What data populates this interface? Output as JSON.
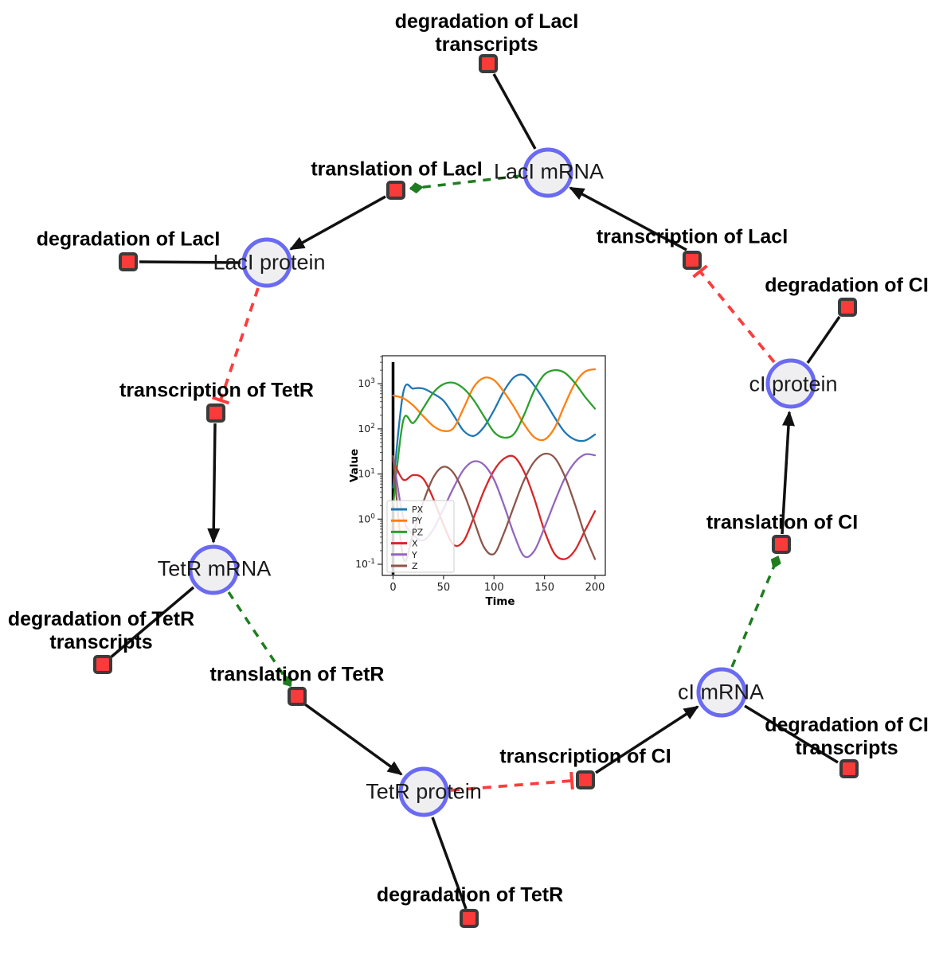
{
  "diagram": {
    "species": [
      {
        "label": "LacI mRNA"
      },
      {
        "label": "LacI protein"
      },
      {
        "label": "TetR mRNA"
      },
      {
        "label": "TetR protein"
      },
      {
        "label": "cI mRNA"
      },
      {
        "label": "cI protein"
      }
    ],
    "reactions": [
      {
        "label": "degradation of LacI transcripts",
        "lines": [
          "degradation of LacI",
          "transcripts"
        ]
      },
      {
        "label": "translation of LacI",
        "lines": [
          "translation of LacI"
        ]
      },
      {
        "label": "transcription of LacI",
        "lines": [
          "transcription of LacI"
        ]
      },
      {
        "label": "degradation of LacI",
        "lines": [
          "degradation of LacI"
        ]
      },
      {
        "label": "transcription of TetR",
        "lines": [
          "transcription of TetR"
        ]
      },
      {
        "label": "degradation of TetR transcripts",
        "lines": [
          "degradation of TetR",
          "transcripts"
        ]
      },
      {
        "label": "translation of TetR",
        "lines": [
          "translation of TetR"
        ]
      },
      {
        "label": "degradation of TetR",
        "lines": [
          "degradation of TetR"
        ]
      },
      {
        "label": "transcription of CI",
        "lines": [
          "transcription of CI"
        ]
      },
      {
        "label": "degradation of CI transcripts",
        "lines": [
          "degradation of CI",
          "transcripts"
        ]
      },
      {
        "label": "translation of CI",
        "lines": [
          "translation of CI"
        ]
      },
      {
        "label": "degradation of CI",
        "lines": [
          "degradation of CI"
        ]
      }
    ],
    "edges": [
      {
        "from": "LacI mRNA",
        "to": "degradation of LacI transcripts",
        "type": "consumption"
      },
      {
        "from": "LacI mRNA",
        "to": "translation of LacI",
        "type": "modifier"
      },
      {
        "from": "transcription of LacI",
        "to": "LacI mRNA",
        "type": "production"
      },
      {
        "from": "translation of LacI",
        "to": "LacI protein",
        "type": "production"
      },
      {
        "from": "LacI protein",
        "to": "degradation of LacI",
        "type": "consumption"
      },
      {
        "from": "LacI protein",
        "to": "transcription of TetR",
        "type": "inhibition"
      },
      {
        "from": "transcription of TetR",
        "to": "TetR mRNA",
        "type": "production"
      },
      {
        "from": "TetR mRNA",
        "to": "degradation of TetR transcripts",
        "type": "consumption"
      },
      {
        "from": "TetR mRNA",
        "to": "translation of TetR",
        "type": "modifier"
      },
      {
        "from": "translation of TetR",
        "to": "TetR protein",
        "type": "production"
      },
      {
        "from": "TetR protein",
        "to": "degradation of TetR",
        "type": "consumption"
      },
      {
        "from": "TetR protein",
        "to": "transcription of CI",
        "type": "inhibition"
      },
      {
        "from": "transcription of CI",
        "to": "cI mRNA",
        "type": "production"
      },
      {
        "from": "cI mRNA",
        "to": "degradation of CI transcripts",
        "type": "consumption"
      },
      {
        "from": "cI mRNA",
        "to": "translation of CI",
        "type": "modifier"
      },
      {
        "from": "translation of CI",
        "to": "cI protein",
        "type": "production"
      },
      {
        "from": "cI protein",
        "to": "degradation of CI",
        "type": "consumption"
      },
      {
        "from": "cI protein",
        "to": "transcription of LacI",
        "type": "inhibition"
      }
    ],
    "colors": {
      "species_border": "#6a6af2",
      "species_fill": "#efeff1",
      "reaction_fill": "#fb3a3a",
      "reaction_border": "#3b3b3b",
      "production_edge": "#111111",
      "modifier_edge": "#1f7d1f",
      "inhibition_edge": "#fb3d3d"
    }
  },
  "chart_data": {
    "type": "line",
    "title": "",
    "xlabel": "Time",
    "ylabel": "Value",
    "y_scale": "log",
    "x_ticks": [
      0,
      50,
      100,
      150,
      200
    ],
    "y_tick_exponents": [
      -1,
      0,
      1,
      2,
      3
    ],
    "xlim": [
      -10,
      210
    ],
    "ylim_log10": [
      -1.25,
      3.62
    ],
    "legend_position": "lower left",
    "event_line_x": 0,
    "x": [
      0,
      10,
      20,
      30,
      40,
      50,
      60,
      70,
      80,
      90,
      100,
      110,
      120,
      130,
      140,
      150,
      160,
      170,
      180,
      190,
      200
    ],
    "series": [
      {
        "name": "PX",
        "color": "#1f77b4",
        "values": [
          5,
          630,
          780,
          780,
          600,
          420,
          200,
          90,
          70,
          110,
          260,
          700,
          1400,
          1550,
          900,
          420,
          180,
          85,
          58,
          55,
          75
        ]
      },
      {
        "name": "PY",
        "color": "#ff7f0e",
        "values": [
          550,
          480,
          330,
          190,
          115,
          90,
          105,
          290,
          850,
          1350,
          1200,
          650,
          300,
          125,
          65,
          58,
          105,
          340,
          1000,
          1850,
          2100
        ]
      },
      {
        "name": "PZ",
        "color": "#2ca02c",
        "values": [
          2,
          150,
          135,
          290,
          640,
          980,
          1050,
          780,
          430,
          190,
          85,
          64,
          78,
          210,
          720,
          1600,
          2000,
          1750,
          1050,
          520,
          280
        ]
      },
      {
        "name": "X",
        "color": "#d62728",
        "values": [
          20,
          7.5,
          9.5,
          7.8,
          2.8,
          0.75,
          0.27,
          0.33,
          1.1,
          4.2,
          12,
          22,
          24,
          11,
          2.8,
          0.55,
          0.17,
          0.13,
          0.2,
          0.55,
          1.5
        ]
      },
      {
        "name": "Y",
        "color": "#9467bd",
        "values": [
          25,
          1.1,
          0.45,
          0.34,
          0.6,
          1.7,
          5,
          12.5,
          19,
          16,
          7.5,
          2,
          0.45,
          0.15,
          0.2,
          0.65,
          2.4,
          8,
          18,
          27,
          26
        ]
      },
      {
        "name": "Z",
        "color": "#8c564b",
        "values": [
          25,
          0.14,
          0.5,
          2.4,
          8.5,
          14.5,
          10.5,
          3.8,
          0.95,
          0.24,
          0.17,
          0.5,
          2,
          7.5,
          19,
          28,
          23,
          9,
          2.2,
          0.45,
          0.13
        ]
      }
    ]
  }
}
